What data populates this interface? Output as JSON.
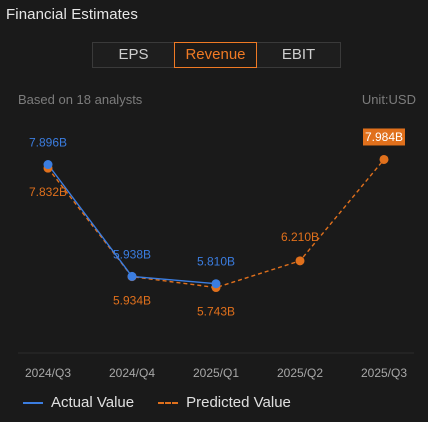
{
  "header": {
    "title": "Financial Estimates"
  },
  "tabs": [
    {
      "label": "EPS",
      "active": false
    },
    {
      "label": "Revenue",
      "active": true
    },
    {
      "label": "EBIT",
      "active": false
    }
  ],
  "subheader": {
    "analysts": "Based on 18 analysts",
    "unit": "Unit:USD"
  },
  "colors": {
    "actual": "#3b7de0",
    "predicted": "#e0701c",
    "background": "#1a1a1a",
    "grid": "#2c2c2c"
  },
  "chart_data": {
    "type": "line",
    "categories": [
      "2024/Q3",
      "2024/Q4",
      "2025/Q1",
      "2025/Q2",
      "2025/Q3"
    ],
    "ylim": [
      5.0,
      8.5
    ],
    "series": [
      {
        "name": "Actual Value",
        "values": [
          7.896,
          5.938,
          5.81,
          null,
          null
        ],
        "labels": [
          "7.896B",
          "5.938B",
          "5.810B",
          "",
          ""
        ],
        "style": "solid"
      },
      {
        "name": "Predicted Value",
        "values": [
          7.832,
          5.934,
          5.743,
          6.21,
          7.984
        ],
        "labels": [
          "7.832B",
          "5.934B",
          "5.743B",
          "6.210B",
          "7.984B"
        ],
        "style": "dashed",
        "highlight_last": true
      }
    ]
  },
  "legend": {
    "actual_label": "Actual Value",
    "predicted_label": "Predicted Value"
  }
}
